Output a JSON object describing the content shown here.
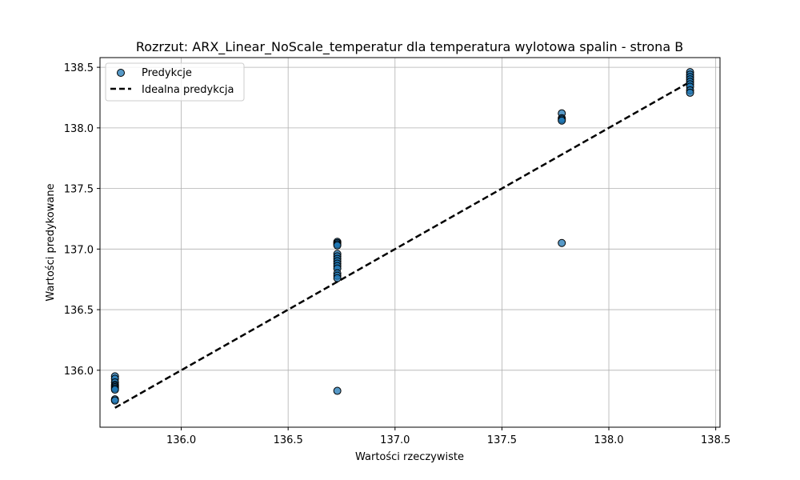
{
  "chart_data": {
    "type": "scatter",
    "title": "Rozrzut: ARX_Linear_NoScale_temperatur dla temperatura wylotowa spalin - strona B",
    "xlabel": "Wartości rzeczywiste",
    "ylabel": "Wartości predykowane",
    "xlim": [
      135.62,
      138.52
    ],
    "ylim": [
      135.53,
      138.58
    ],
    "xticks": [
      "136.0",
      "136.5",
      "137.0",
      "137.5",
      "138.0",
      "138.5"
    ],
    "yticks": [
      "136.0",
      "136.5",
      "137.0",
      "137.5",
      "138.0",
      "138.5"
    ],
    "grid": true,
    "legend_position": "top-left",
    "legend": [
      "Predykcje",
      "Idealna predykcja"
    ],
    "colors": {
      "points_fill": "#1f77b4",
      "points_edge": "#000000",
      "ideal_line": "#000000",
      "grid": "#b0b0b0"
    },
    "series": [
      {
        "name": "Predykcje",
        "style": "scatter",
        "points": [
          [
            135.69,
            135.95
          ],
          [
            135.69,
            135.93
          ],
          [
            135.69,
            135.9
          ],
          [
            135.69,
            135.88
          ],
          [
            135.69,
            135.87
          ],
          [
            135.69,
            135.86
          ],
          [
            135.69,
            135.85
          ],
          [
            135.69,
            135.84
          ],
          [
            135.69,
            135.76
          ],
          [
            135.69,
            135.75
          ],
          [
            136.73,
            137.06
          ],
          [
            136.73,
            137.05
          ],
          [
            136.73,
            137.04
          ],
          [
            136.73,
            137.03
          ],
          [
            136.73,
            136.96
          ],
          [
            136.73,
            136.94
          ],
          [
            136.73,
            136.92
          ],
          [
            136.73,
            136.9
          ],
          [
            136.73,
            136.88
          ],
          [
            136.73,
            136.86
          ],
          [
            136.73,
            136.84
          ],
          [
            136.73,
            136.8
          ],
          [
            136.73,
            136.78
          ],
          [
            136.73,
            136.76
          ],
          [
            136.73,
            135.83
          ],
          [
            137.78,
            138.12
          ],
          [
            137.78,
            138.08
          ],
          [
            137.78,
            138.07
          ],
          [
            137.78,
            138.06
          ],
          [
            137.78,
            137.05
          ],
          [
            138.38,
            138.46
          ],
          [
            138.38,
            138.44
          ],
          [
            138.38,
            138.42
          ],
          [
            138.38,
            138.4
          ],
          [
            138.38,
            138.38
          ],
          [
            138.38,
            138.36
          ],
          [
            138.38,
            138.34
          ],
          [
            138.38,
            138.31
          ],
          [
            138.38,
            138.29
          ]
        ]
      },
      {
        "name": "Idealna predykcja",
        "style": "dashed-line",
        "points": [
          [
            135.69,
            135.69
          ],
          [
            138.38,
            138.38
          ]
        ]
      }
    ]
  }
}
